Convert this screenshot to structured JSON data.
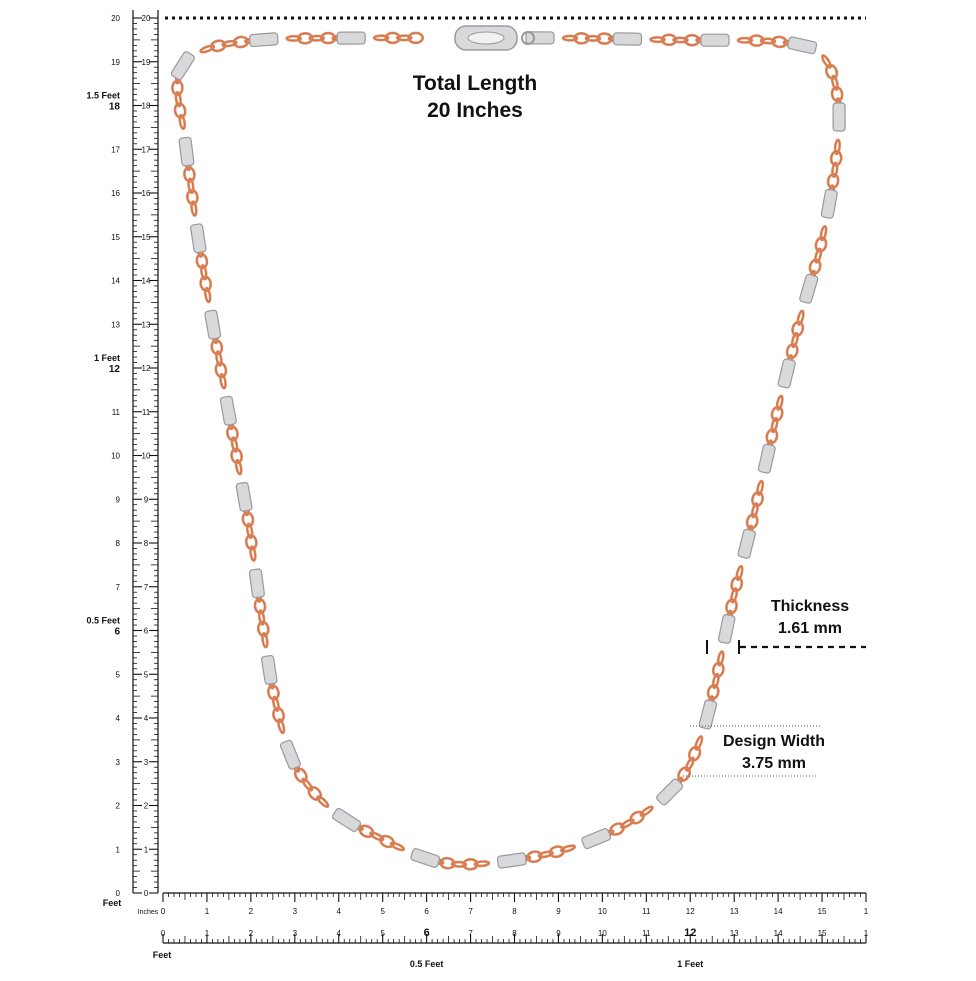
{
  "title": {
    "line1": "Total Length",
    "line2": "20 Inches"
  },
  "thickness": {
    "label": "Thickness",
    "value": "1.61 mm"
  },
  "design_width": {
    "label": "Design Width",
    "value": "3.75 mm"
  },
  "vertical_ruler": {
    "inch_labels": [
      "0",
      "1",
      "2",
      "3",
      "4",
      "5",
      "6",
      "7",
      "8",
      "9",
      "10",
      "11",
      "12",
      "13",
      "14",
      "15",
      "16",
      "17",
      "18",
      "19",
      "20"
    ],
    "outer_labels": [
      {
        "inch": 0,
        "text": "0"
      },
      {
        "inch": 1,
        "text": "1"
      },
      {
        "inch": 2,
        "text": "2"
      },
      {
        "inch": 3,
        "text": "3"
      },
      {
        "inch": 4,
        "text": "4"
      },
      {
        "inch": 5,
        "text": "5"
      },
      {
        "inch": 6,
        "text": "6",
        "feet": "0.5 Feet"
      },
      {
        "inch": 7,
        "text": "7"
      },
      {
        "inch": 8,
        "text": "8"
      },
      {
        "inch": 9,
        "text": "9"
      },
      {
        "inch": 10,
        "text": "10"
      },
      {
        "inch": 11,
        "text": "11"
      },
      {
        "inch": 12,
        "text": "12",
        "feet": "1 Feet"
      },
      {
        "inch": 13,
        "text": "13"
      },
      {
        "inch": 14,
        "text": "14"
      },
      {
        "inch": 15,
        "text": "15"
      },
      {
        "inch": 16,
        "text": "16"
      },
      {
        "inch": 17,
        "text": "17"
      },
      {
        "inch": 18,
        "text": "18",
        "feet": "1.5 Feet"
      },
      {
        "inch": 19,
        "text": "19"
      },
      {
        "inch": 20,
        "text": "20"
      }
    ]
  },
  "horizontal_ruler": {
    "inch_labels": [
      "0",
      "1",
      "2",
      "3",
      "4",
      "5",
      "6",
      "7",
      "8",
      "9",
      "10",
      "11",
      "12",
      "13",
      "14",
      "15",
      "1"
    ],
    "feet_labels": [
      "0",
      "1",
      "2",
      "3",
      "4",
      "5",
      "6",
      "7",
      "8",
      "9",
      "10",
      "11",
      "12",
      "13",
      "14",
      "15",
      "1"
    ],
    "feet_marks": [
      {
        "inch": 6,
        "text": "0.5 Feet"
      },
      {
        "inch": 12,
        "text": "1 Feet"
      }
    ],
    "corner_feet": "Feet",
    "corner_inches": "Inches",
    "bottom_corner_feet": "Feet"
  },
  "colors": {
    "rose_gold": "#e0875c",
    "rose_gold_dark": "#b8633c",
    "steel": "#d9d9dc",
    "steel_dark": "#9a9a9e",
    "ink": "#111111"
  }
}
